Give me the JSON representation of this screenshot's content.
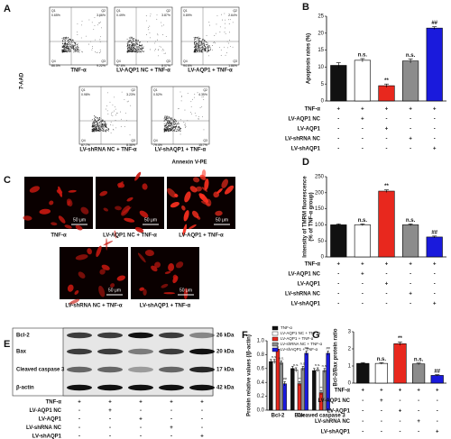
{
  "panel_labels": [
    "A",
    "B",
    "C",
    "D",
    "E",
    "F",
    "G"
  ],
  "flow": {
    "y_axis": "7-AAD",
    "x_axis": "Annexin V-PE",
    "plots": [
      {
        "caption": "TNF-α",
        "quadrants": [
          {
            "name": "Q1",
            "value": "0.65%"
          },
          {
            "name": "Q2",
            "value": "3.66%"
          },
          {
            "name": "Q4",
            "value": "86.5%"
          },
          {
            "name": "Q3",
            "value": "9.22%"
          }
        ]
      },
      {
        "caption": "LV-AQP1 NC + TNF-α",
        "quadrants": [
          {
            "name": "Q1",
            "value": "0.49%"
          },
          {
            "name": "Q2",
            "value": "3.87%"
          },
          {
            "name": "Q4",
            "value": "87.6%"
          },
          {
            "name": "Q3",
            "value": "8.07%"
          }
        ]
      },
      {
        "caption": "LV-AQP1 + TNF-α",
        "quadrants": [
          {
            "name": "Q1",
            "value": "0.89%"
          },
          {
            "name": "Q2",
            "value": "2.64%"
          },
          {
            "name": "Q4",
            "value": "94.6%"
          },
          {
            "name": "Q3",
            "value": "1.86%"
          }
        ]
      },
      {
        "caption": "LV-shRNA NC + TNF-α",
        "quadrants": [
          {
            "name": "Q1",
            "value": "0.98%"
          },
          {
            "name": "Q2",
            "value": "3.23%"
          },
          {
            "name": "Q4",
            "value": "87.7%"
          },
          {
            "name": "Q3",
            "value": "8.36%"
          }
        ]
      },
      {
        "caption": "LV-shAQP1 + TNF-α",
        "quadrants": [
          {
            "name": "Q1",
            "value": "0.52%"
          },
          {
            "name": "Q2",
            "value": "4.35%"
          },
          {
            "name": "Q4",
            "value": "79.4%"
          },
          {
            "name": "Q3",
            "value": "15.7%"
          }
        ]
      }
    ]
  },
  "images": {
    "scale_bar": "50 μm",
    "captions": [
      "TNF-α",
      "LV-AQP1 NC + TNF-α",
      "LV-AQP1 + TNF-α",
      "LV-shRNA NC + TNF-α",
      "LV-shAQP1 + TNF-α"
    ]
  },
  "blot": {
    "bands": [
      {
        "name": "Bcl-2",
        "size": "26 kDa"
      },
      {
        "name": "Bax",
        "size": "20 kDa"
      },
      {
        "name": "Cleaved caspase 3",
        "size": "17 kDa"
      },
      {
        "name": "β-actin",
        "size": "42 kDa"
      }
    ],
    "treatments": [
      {
        "label": "TNF-α",
        "marks": [
          "+",
          "+",
          "+",
          "+",
          "+"
        ]
      },
      {
        "label": "LV-AQP1 NC",
        "marks": [
          "-",
          "+",
          "-",
          "-",
          "-"
        ]
      },
      {
        "label": "LV-AQP1",
        "marks": [
          "-",
          "-",
          "+",
          "-",
          "-"
        ]
      },
      {
        "label": "LV-shRNA NC",
        "marks": [
          "-",
          "-",
          "-",
          "+",
          "-"
        ]
      },
      {
        "label": "LV-shAQP1",
        "marks": [
          "-",
          "-",
          "-",
          "-",
          "+"
        ]
      }
    ]
  },
  "chart_data": [
    {
      "type": "bar",
      "ylabel": [
        "Apoptosis rates (%)"
      ],
      "values": [
        10.5,
        12,
        4.5,
        11.8,
        21.5
      ],
      "errors": [
        0.8,
        0.5,
        0.5,
        0.6,
        0.4
      ],
      "colors": [
        "#111111",
        "#ffffff",
        "#e8281e",
        "#8c8c8c",
        "#1a1adc"
      ],
      "annotations": [
        {
          "index": 1,
          "text": "n.s."
        },
        {
          "index": 2,
          "text": "**"
        },
        {
          "index": 3,
          "text": "n.s."
        },
        {
          "index": 4,
          "text": "##"
        }
      ],
      "ylim": [
        0,
        25
      ],
      "yticks": [
        0,
        5,
        10,
        15,
        20,
        25
      ],
      "treatments": [
        {
          "label": "TNF-α",
          "marks": [
            "+",
            "+",
            "+",
            "+",
            "+"
          ]
        },
        {
          "label": "LV-AQP1 NC",
          "marks": [
            "-",
            "+",
            "-",
            "-",
            "-"
          ]
        },
        {
          "label": "LV-AQP1",
          "marks": [
            "-",
            "-",
            "+",
            "-",
            "-"
          ]
        },
        {
          "label": "LV-shRNA NC",
          "marks": [
            "-",
            "-",
            "-",
            "+",
            "-"
          ]
        },
        {
          "label": "LV-shAQP1",
          "marks": [
            "-",
            "-",
            "-",
            "-",
            "+"
          ]
        }
      ]
    },
    {
      "type": "bar",
      "ylabel": [
        "Intensity of TMRM fluorescence",
        "(% of TNF-α group)"
      ],
      "values": [
        100,
        100,
        205,
        100,
        62
      ],
      "errors": [
        3,
        3,
        4,
        3,
        3
      ],
      "colors": [
        "#111111",
        "#ffffff",
        "#e8281e",
        "#8c8c8c",
        "#1a1adc"
      ],
      "annotations": [
        {
          "index": 1,
          "text": "n.s."
        },
        {
          "index": 2,
          "text": "**"
        },
        {
          "index": 3,
          "text": "n.s."
        },
        {
          "index": 4,
          "text": "##"
        }
      ],
      "ylim": [
        0,
        250
      ],
      "yticks": [
        0,
        50,
        100,
        150,
        200,
        250
      ],
      "treatments": [
        {
          "label": "TNF-α",
          "marks": [
            "+",
            "+",
            "+",
            "+",
            "+"
          ]
        },
        {
          "label": "LV-AQP1 NC",
          "marks": [
            "-",
            "+",
            "-",
            "-",
            "-"
          ]
        },
        {
          "label": "LV-AQP1",
          "marks": [
            "-",
            "-",
            "+",
            "-",
            "-"
          ]
        },
        {
          "label": "LV-shRNA NC",
          "marks": [
            "-",
            "-",
            "-",
            "+",
            "-"
          ]
        },
        {
          "label": "LV-shAQP1",
          "marks": [
            "-",
            "-",
            "-",
            "-",
            "+"
          ]
        }
      ]
    },
    {
      "type": "grouped_bar",
      "ylabel": [
        "Protein relative values (/β-actin)"
      ],
      "categories": [
        "Bcl-2",
        "Bax",
        "Cleaved caspase 3"
      ],
      "ylim": [
        0,
        1
      ],
      "yticks": [
        {
          "value": 0,
          "label": "0.0"
        },
        {
          "value": 0.2,
          "label": "0.2"
        },
        {
          "value": 0.4,
          "label": "0.4"
        },
        {
          "value": 0.6,
          "label": "0.6"
        },
        {
          "value": 0.8,
          "label": "0.8"
        },
        {
          "value": 1,
          "label": "1.0"
        }
      ],
      "series": [
        {
          "name": "TNF-α",
          "color": "#111111",
          "values": [
            0.7,
            0.6,
            0.57
          ],
          "errors": [
            0.03,
            0.03,
            0.03
          ]
        },
        {
          "name": "LV-AQP1 NC + TNF-α",
          "color": "#ffffff",
          "values": [
            0.7,
            0.58,
            0.58
          ],
          "errors": [
            0.03,
            0.03,
            0.03
          ],
          "annotations": [
            "n.s.",
            "n.s.",
            "n.s."
          ]
        },
        {
          "name": "LV-AQP1 + TNF-α",
          "color": "#e8281e",
          "values": [
            0.88,
            0.38,
            0.25
          ],
          "errors": [
            0.03,
            0.03,
            0.03
          ],
          "annotations": [
            "**",
            "**",
            "**"
          ]
        },
        {
          "name": "LV-shRNA NC + TNF-α",
          "color": "#8c8c8c",
          "values": [
            0.68,
            0.6,
            0.57
          ],
          "errors": [
            0.03,
            0.03,
            0.03
          ],
          "annotations": [
            "n.s.",
            "n.s.",
            "n.s."
          ]
        },
        {
          "name": "LV-shAQP1 + TNF-α",
          "color": "#1a1adc",
          "values": [
            0.38,
            0.82,
            0.82
          ],
          "errors": [
            0.03,
            0.03,
            0.03
          ],
          "annotations": [
            "##",
            "##",
            "##"
          ]
        }
      ]
    },
    {
      "type": "bar",
      "ylabel": [
        "Bcl-2/Bax protein ratio"
      ],
      "values": [
        1.15,
        1.15,
        2.3,
        1.12,
        0.45
      ],
      "errors": [
        0.05,
        0.05,
        0.1,
        0.05,
        0.04
      ],
      "colors": [
        "#111111",
        "#ffffff",
        "#e8281e",
        "#8c8c8c",
        "#1a1adc"
      ],
      "annotations": [
        {
          "index": 1,
          "text": "n.s."
        },
        {
          "index": 2,
          "text": "**"
        },
        {
          "index": 3,
          "text": "n.s."
        },
        {
          "index": 4,
          "text": "##"
        }
      ],
      "ylim": [
        0,
        3
      ],
      "yticks": [
        0,
        1,
        2,
        3
      ],
      "treatments": [
        {
          "label": "TNF-α",
          "marks": [
            "+",
            "+",
            "+",
            "+",
            "+"
          ]
        },
        {
          "label": "LV-AQP1 NC",
          "marks": [
            "-",
            "+",
            "-",
            "-",
            "-"
          ]
        },
        {
          "label": "LV-AQP1",
          "marks": [
            "-",
            "-",
            "+",
            "-",
            "-"
          ]
        },
        {
          "label": "LV-shRNA NC",
          "marks": [
            "-",
            "-",
            "-",
            "+",
            "-"
          ]
        },
        {
          "label": "LV-shAQP1",
          "marks": [
            "-",
            "-",
            "-",
            "-",
            "+"
          ]
        }
      ]
    }
  ]
}
